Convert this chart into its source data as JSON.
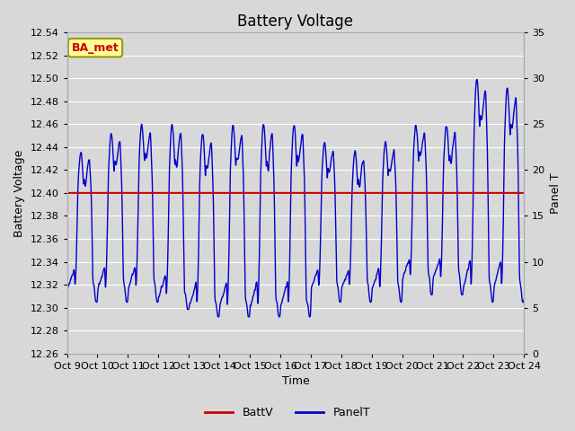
{
  "title": "Battery Voltage",
  "xlabel": "Time",
  "ylabel_left": "Battery Voltage",
  "ylabel_right": "Panel T",
  "ylim_left": [
    12.26,
    12.54
  ],
  "ylim_right": [
    0,
    35
  ],
  "xlim": [
    0,
    15
  ],
  "battv_value": 12.4,
  "battv_color": "#cc0000",
  "panelt_color": "#0000cc",
  "background_color": "#d8d8d8",
  "plot_bg_color": "#d8d8d8",
  "grid_color": "#ffffff",
  "title_fontsize": 12,
  "axis_label_fontsize": 9,
  "tick_fontsize": 8,
  "legend_fontsize": 9,
  "annotation_text": "BA_met",
  "annotation_bg": "#ffff99",
  "annotation_border": "#999900",
  "annotation_text_color": "#cc0000",
  "x_tick_labels": [
    "Oct 9",
    "Oct 10",
    "Oct 11",
    "Oct 12",
    "Oct 13",
    "Oct 14",
    "Oct 15",
    "Oct 16",
    "Oct 17",
    "Oct 18",
    "Oct 19",
    "Oct 20",
    "Oct 21",
    "Oct 22",
    "Oct 23",
    "Oct 24"
  ],
  "y_left_ticks": [
    12.26,
    12.28,
    12.3,
    12.32,
    12.34,
    12.36,
    12.38,
    12.4,
    12.42,
    12.44,
    12.46,
    12.48,
    12.5,
    12.52,
    12.54
  ],
  "y_right_ticks": [
    0,
    5,
    10,
    15,
    20,
    25,
    30,
    35
  ]
}
